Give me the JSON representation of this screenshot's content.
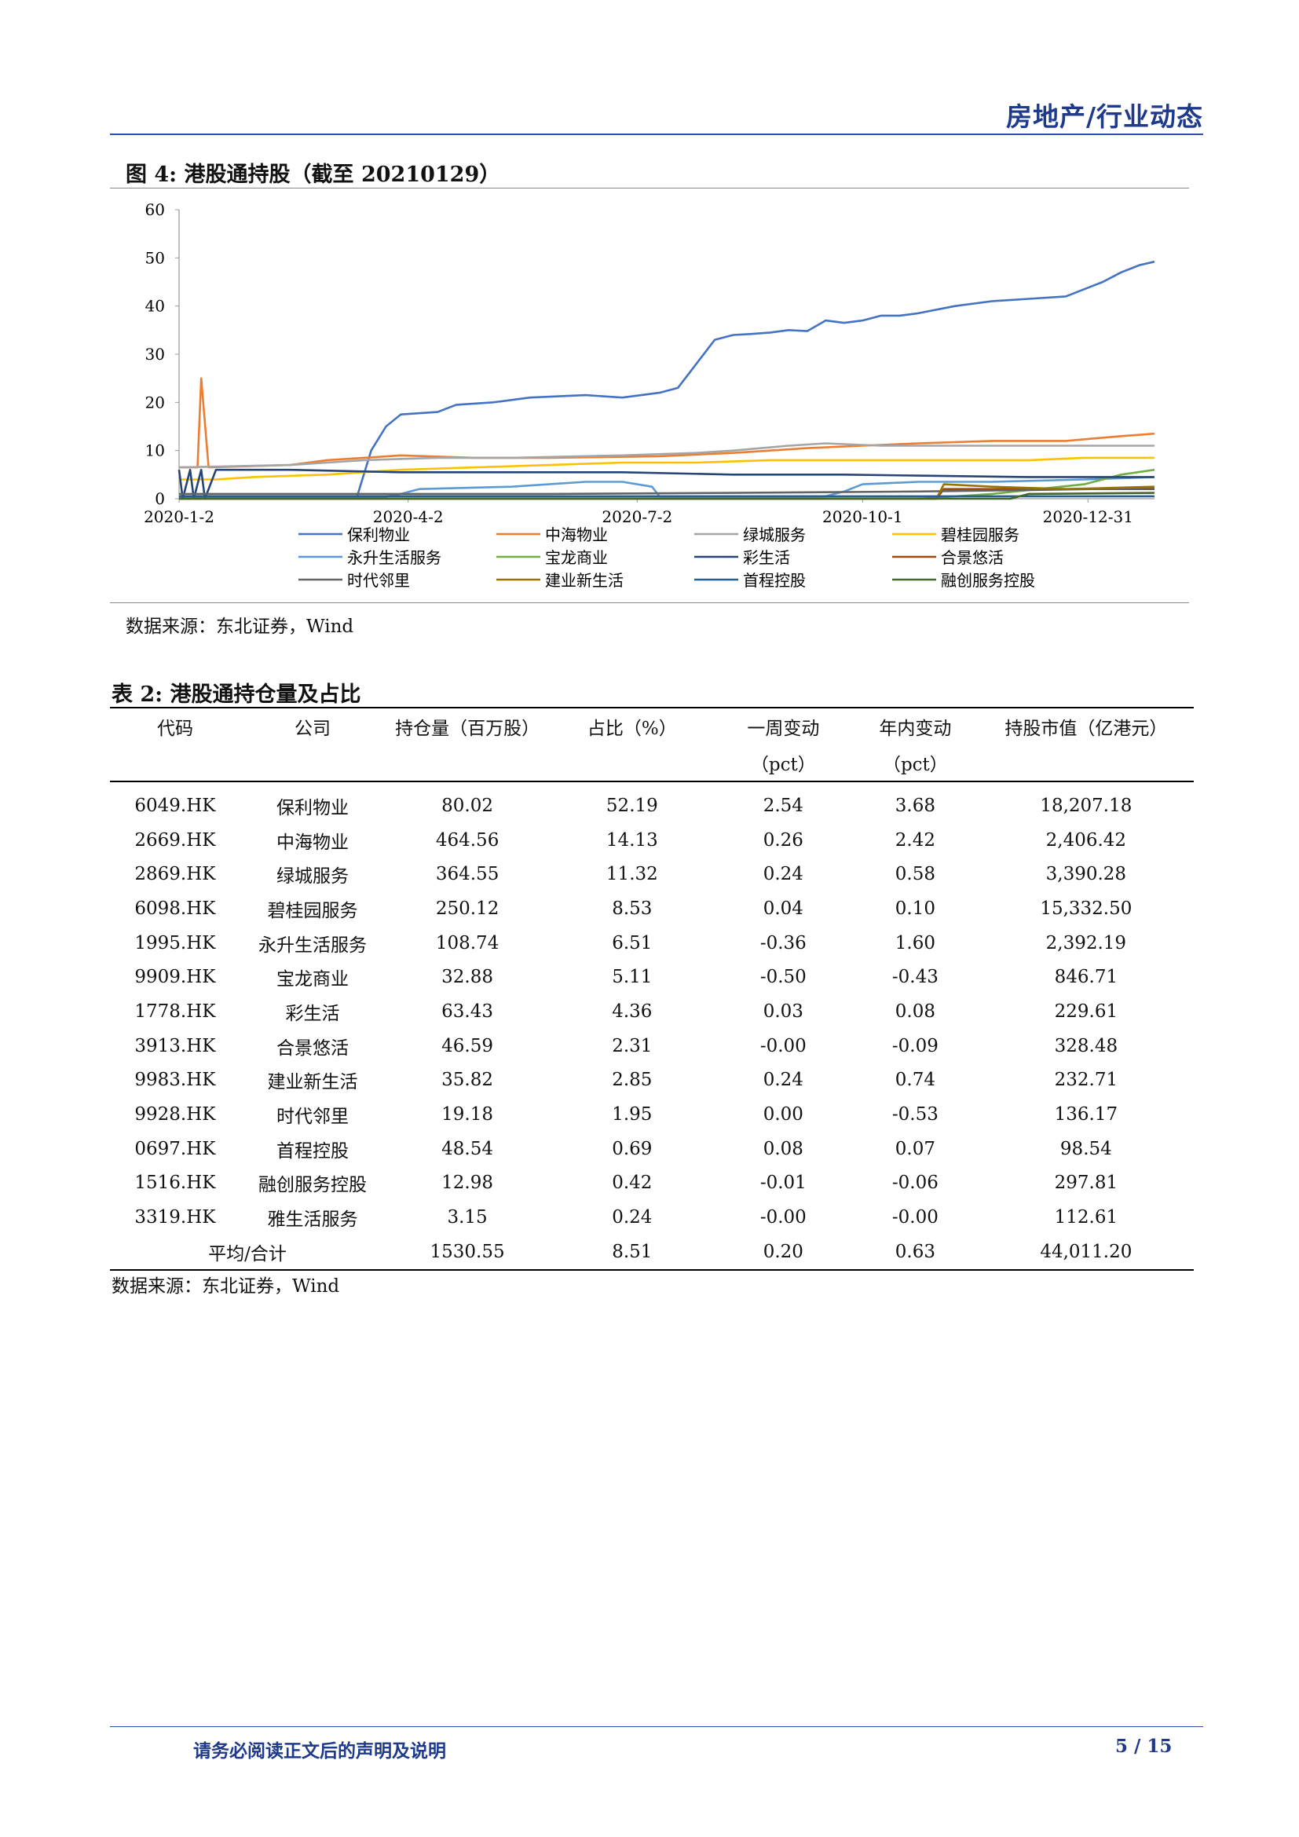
{
  "header": {
    "title": "房地产/行业动态"
  },
  "figure": {
    "title": "图 4:  港股通持股（截至 20210129）",
    "source": "数据来源：东北证券，Wind"
  },
  "chart_data": {
    "type": "line",
    "ylim": [
      0,
      60
    ],
    "yticks": [
      "0",
      "10",
      "20",
      "30",
      "40",
      "50",
      "60"
    ],
    "xticks": [
      {
        "label": "2020-1-2",
        "pos": 0
      },
      {
        "label": "2020-4-2",
        "pos": 62
      },
      {
        "label": "2020-7-2",
        "pos": 124
      },
      {
        "label": "2020-10-1",
        "pos": 185
      },
      {
        "label": "2020-12-31",
        "pos": 246
      }
    ],
    "x_max": 264,
    "legend": "bottom",
    "series": [
      {
        "name": "保利物业",
        "color": "#4472c4",
        "points": [
          [
            0,
            0
          ],
          [
            48,
            0
          ],
          [
            52,
            10
          ],
          [
            56,
            15
          ],
          [
            60,
            17.5
          ],
          [
            70,
            18
          ],
          [
            75,
            19.5
          ],
          [
            85,
            20
          ],
          [
            95,
            21
          ],
          [
            110,
            21.5
          ],
          [
            120,
            21
          ],
          [
            130,
            22
          ],
          [
            135,
            23
          ],
          [
            140,
            28
          ],
          [
            145,
            33
          ],
          [
            150,
            34
          ],
          [
            155,
            34.2
          ],
          [
            160,
            34.5
          ],
          [
            165,
            35
          ],
          [
            170,
            34.8
          ],
          [
            175,
            37
          ],
          [
            180,
            36.5
          ],
          [
            185,
            37
          ],
          [
            190,
            38
          ],
          [
            195,
            38
          ],
          [
            200,
            38.5
          ],
          [
            210,
            40
          ],
          [
            220,
            41
          ],
          [
            230,
            41.5
          ],
          [
            240,
            42
          ],
          [
            250,
            45
          ],
          [
            255,
            47
          ],
          [
            260,
            48.5
          ],
          [
            264,
            49.2
          ]
        ]
      },
      {
        "name": "中海物业",
        "color": "#ed7d31",
        "points": [
          [
            0,
            6.5
          ],
          [
            5,
            6.5
          ],
          [
            6,
            25
          ],
          [
            8,
            6.5
          ],
          [
            30,
            7
          ],
          [
            40,
            8
          ],
          [
            50,
            8.5
          ],
          [
            60,
            9
          ],
          [
            80,
            8.5
          ],
          [
            100,
            8.5
          ],
          [
            130,
            8.8
          ],
          [
            150,
            9.5
          ],
          [
            170,
            10.5
          ],
          [
            185,
            11
          ],
          [
            200,
            11.5
          ],
          [
            220,
            12
          ],
          [
            240,
            12
          ],
          [
            255,
            13
          ],
          [
            264,
            13.5
          ]
        ]
      },
      {
        "name": "绿城服务",
        "color": "#a5a5a5",
        "points": [
          [
            0,
            6.5
          ],
          [
            30,
            7
          ],
          [
            50,
            8
          ],
          [
            70,
            8.5
          ],
          [
            90,
            8.5
          ],
          [
            120,
            9
          ],
          [
            140,
            9.5
          ],
          [
            150,
            10
          ],
          [
            165,
            11
          ],
          [
            175,
            11.5
          ],
          [
            190,
            11
          ],
          [
            220,
            11
          ],
          [
            245,
            11
          ],
          [
            264,
            11
          ]
        ]
      },
      {
        "name": "碧桂园服务",
        "color": "#ffc000",
        "points": [
          [
            0,
            4
          ],
          [
            10,
            4
          ],
          [
            20,
            4.5
          ],
          [
            40,
            5
          ],
          [
            60,
            6
          ],
          [
            80,
            6.5
          ],
          [
            100,
            7
          ],
          [
            120,
            7.5
          ],
          [
            140,
            7.5
          ],
          [
            160,
            8
          ],
          [
            180,
            8
          ],
          [
            200,
            8
          ],
          [
            230,
            8
          ],
          [
            245,
            8.5
          ],
          [
            264,
            8.5
          ]
        ]
      },
      {
        "name": "永升生活服务",
        "color": "#5b9bd5",
        "points": [
          [
            0,
            0.3
          ],
          [
            55,
            0.3
          ],
          [
            60,
            1
          ],
          [
            65,
            2
          ],
          [
            90,
            2.5
          ],
          [
            110,
            3.5
          ],
          [
            120,
            3.5
          ],
          [
            128,
            2.5
          ],
          [
            130,
            0.5
          ],
          [
            175,
            0.5
          ],
          [
            180,
            1.5
          ],
          [
            185,
            3
          ],
          [
            200,
            3.5
          ],
          [
            220,
            3.5
          ],
          [
            245,
            4
          ],
          [
            264,
            4.5
          ]
        ]
      },
      {
        "name": "宝龙商业",
        "color": "#70ad47",
        "points": [
          [
            0,
            0
          ],
          [
            200,
            0
          ],
          [
            220,
            1
          ],
          [
            245,
            3
          ],
          [
            255,
            5
          ],
          [
            264,
            6
          ]
        ]
      },
      {
        "name": "彩生活",
        "color": "#264478",
        "points": [
          [
            0,
            6
          ],
          [
            1,
            0
          ],
          [
            3,
            6
          ],
          [
            4,
            0
          ],
          [
            6,
            6
          ],
          [
            7,
            0
          ],
          [
            10,
            6
          ],
          [
            30,
            6
          ],
          [
            60,
            5.5
          ],
          [
            90,
            5.5
          ],
          [
            120,
            5.5
          ],
          [
            150,
            5
          ],
          [
            180,
            5
          ],
          [
            200,
            4.8
          ],
          [
            230,
            4.5
          ],
          [
            264,
            4.5
          ]
        ]
      },
      {
        "name": "合景悠活",
        "color": "#9e480e",
        "points": [
          [
            0,
            0
          ],
          [
            205,
            0
          ],
          [
            207,
            2
          ],
          [
            230,
            2
          ],
          [
            264,
            2
          ]
        ]
      },
      {
        "name": "时代邻里",
        "color": "#636363",
        "points": [
          [
            0,
            1
          ],
          [
            100,
            1
          ],
          [
            150,
            1.2
          ],
          [
            200,
            1.5
          ],
          [
            230,
            1.8
          ],
          [
            264,
            2.2
          ]
        ]
      },
      {
        "name": "建业新生活",
        "color": "#997300",
        "points": [
          [
            0,
            0
          ],
          [
            205,
            0
          ],
          [
            207,
            3
          ],
          [
            220,
            2.5
          ],
          [
            240,
            2
          ],
          [
            264,
            2.5
          ]
        ]
      },
      {
        "name": "首程控股",
        "color": "#255e91",
        "points": [
          [
            0,
            0.5
          ],
          [
            264,
            0.5
          ]
        ]
      },
      {
        "name": "融创服务控股",
        "color": "#43682b",
        "points": [
          [
            0,
            0
          ],
          [
            225,
            0
          ],
          [
            230,
            1
          ],
          [
            264,
            1.2
          ]
        ]
      }
    ]
  },
  "table": {
    "title": "表 2:  港股通持仓量及占比",
    "headers": [
      "代码",
      "公司",
      "持仓量（百万股）",
      "占比（%）",
      "一周变动",
      "年内变动",
      "持股市值（亿港元）"
    ],
    "subheaders": [
      "",
      "",
      "",
      "",
      "（pct）",
      "（pct）",
      ""
    ],
    "rows": [
      [
        "6049.HK",
        "保利物业",
        "80.02",
        "52.19",
        "2.54",
        "3.68",
        "18,207.18"
      ],
      [
        "2669.HK",
        "中海物业",
        "464.56",
        "14.13",
        "0.26",
        "2.42",
        "2,406.42"
      ],
      [
        "2869.HK",
        "绿城服务",
        "364.55",
        "11.32",
        "0.24",
        "0.58",
        "3,390.28"
      ],
      [
        "6098.HK",
        "碧桂园服务",
        "250.12",
        "8.53",
        "0.04",
        "0.10",
        "15,332.50"
      ],
      [
        "1995.HK",
        "永升生活服务",
        "108.74",
        "6.51",
        "-0.36",
        "1.60",
        "2,392.19"
      ],
      [
        "9909.HK",
        "宝龙商业",
        "32.88",
        "5.11",
        "-0.50",
        "-0.43",
        "846.71"
      ],
      [
        "1778.HK",
        "彩生活",
        "63.43",
        "4.36",
        "0.03",
        "0.08",
        "229.61"
      ],
      [
        "3913.HK",
        "合景悠活",
        "46.59",
        "2.31",
        "-0.00",
        "-0.09",
        "328.48"
      ],
      [
        "9983.HK",
        "建业新生活",
        "35.82",
        "2.85",
        "0.24",
        "0.74",
        "232.71"
      ],
      [
        "9928.HK",
        "时代邻里",
        "19.18",
        "1.95",
        "0.00",
        "-0.53",
        "136.17"
      ],
      [
        "0697.HK",
        "首程控股",
        "48.54",
        "0.69",
        "0.08",
        "0.07",
        "98.54"
      ],
      [
        "1516.HK",
        "融创服务控股",
        "12.98",
        "0.42",
        "-0.01",
        "-0.06",
        "297.81"
      ],
      [
        "3319.HK",
        "雅生活服务",
        "3.15",
        "0.24",
        "-0.00",
        "-0.00",
        "112.61"
      ]
    ],
    "total": [
      "平均/合计",
      "1530.55",
      "8.51",
      "0.20",
      "0.63",
      "44,011.20"
    ],
    "source": "数据来源：东北证券，Wind"
  },
  "footer": {
    "disclaimer": "请务必阅读正文后的声明及说明",
    "page": "5  /  15"
  }
}
